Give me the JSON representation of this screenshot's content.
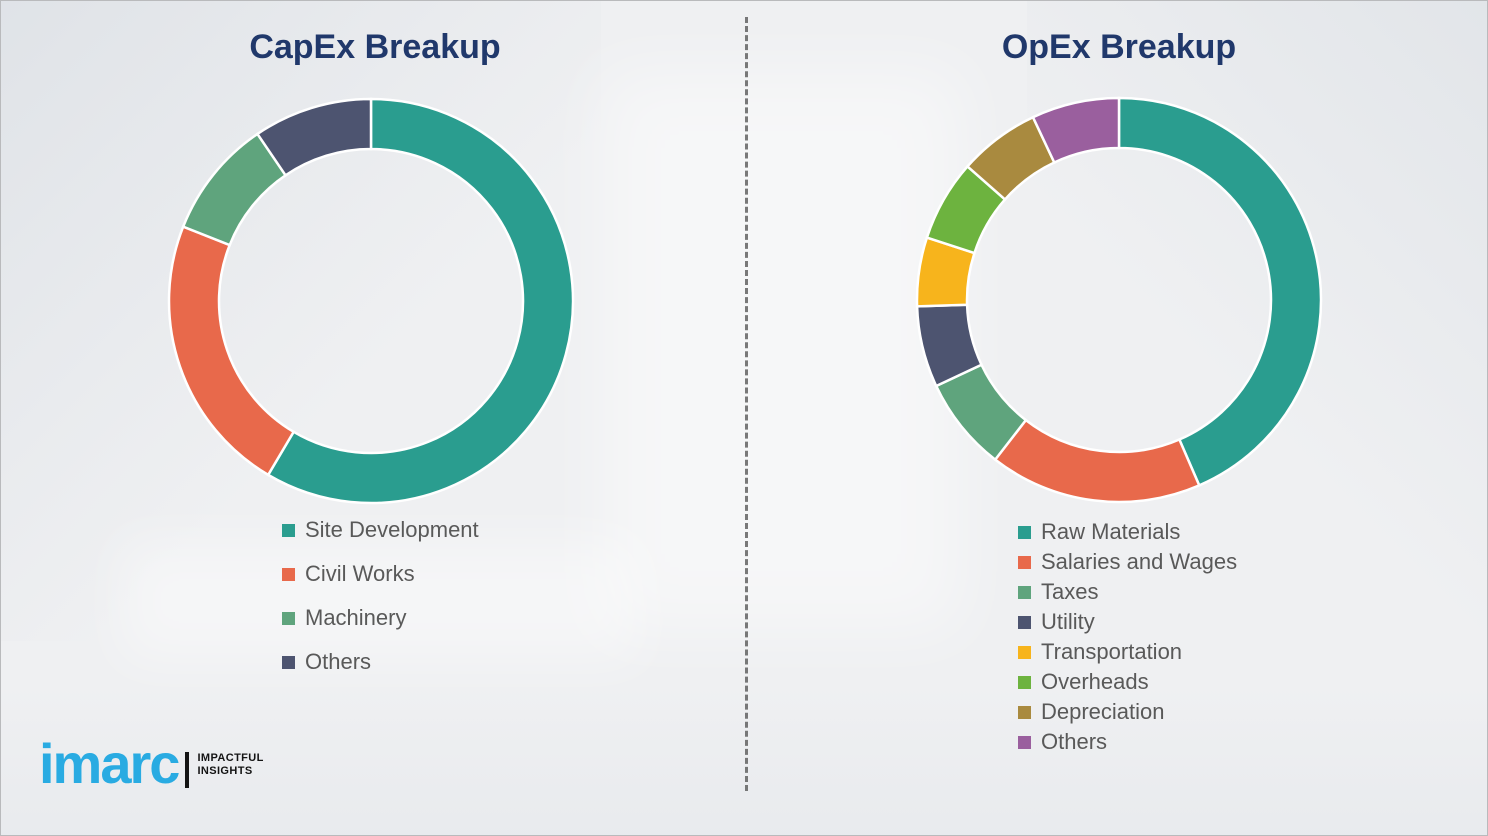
{
  "chart_data": [
    {
      "type": "pie",
      "subtype": "donut",
      "title": "CapEx Breakup",
      "categories": [
        "Site Development",
        "Civil Works",
        "Machinery",
        "Others"
      ],
      "values": [
        58.5,
        22.5,
        9.5,
        9.5
      ],
      "values_note": "percent, estimated from arc angles (no data labels shown)",
      "colors": [
        "#2A9D8F",
        "#E8694B",
        "#5FA47D",
        "#4D5470"
      ],
      "start_angle_deg": 0,
      "direction": "clockwise",
      "legend_position": "below-left",
      "data_labels": false
    },
    {
      "type": "pie",
      "subtype": "donut",
      "title": "OpEx Breakup",
      "categories": [
        "Raw Materials",
        "Salaries and Wages",
        "Taxes",
        "Utility",
        "Transportation",
        "Overheads",
        "Depreciation",
        "Others"
      ],
      "values": [
        43.5,
        17,
        7.5,
        6.5,
        5.5,
        6.5,
        6.5,
        7
      ],
      "values_note": "percent, estimated from arc angles (no data labels shown)",
      "colors": [
        "#2A9D8F",
        "#E8694B",
        "#5FA47D",
        "#4D5470",
        "#F7B41C",
        "#6DB33F",
        "#A98A3F",
        "#9A5F9E"
      ],
      "start_angle_deg": 0,
      "direction": "clockwise",
      "legend_position": "below-left",
      "data_labels": false
    }
  ],
  "logo": {
    "brand": "imarc",
    "tagline_line1": "IMPACTFUL",
    "tagline_line2": "INSIGHTS",
    "brand_color": "#29ABE2"
  },
  "style": {
    "background": "#EFF0F2",
    "title_color": "#20386B",
    "legend_text_color": "#595959",
    "divider_color": "#5A5A5A",
    "segment_gap_color": "#FFFFFF"
  }
}
